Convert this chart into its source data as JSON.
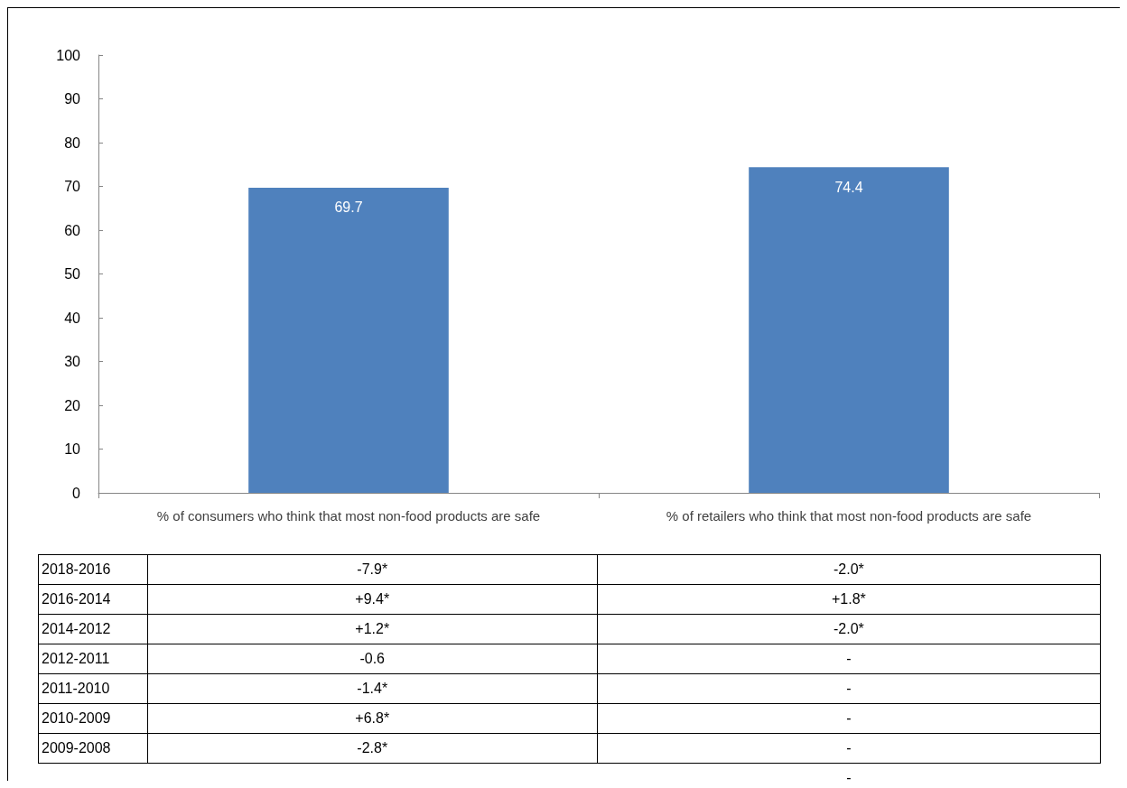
{
  "chart_data": {
    "type": "bar",
    "categories": [
      "% of consumers who think that most non-food products are safe",
      "% of retailers who think that most non-food products are safe"
    ],
    "values": [
      69.7,
      74.4
    ],
    "color": "#4f81bd",
    "data_labels": true,
    "ylim": [
      0,
      100
    ],
    "yticks": [
      0,
      10,
      20,
      30,
      40,
      50,
      60,
      70,
      80,
      90,
      100
    ],
    "grid": false,
    "annotations": [
      "2018-2016",
      "-7.9*",
      "-2.0*",
      "2016-2014",
      "+9.4*",
      "+1.8*",
      "2014-2012",
      "+1.2*",
      "-2.0*",
      "2012-2011",
      "-0.6",
      "-",
      "2011-2010",
      "-1.4*",
      "-",
      "2010-2009",
      "+6.8*",
      "-",
      "2009-2008",
      "-2.8*",
      "-",
      "-"
    ]
  }
}
